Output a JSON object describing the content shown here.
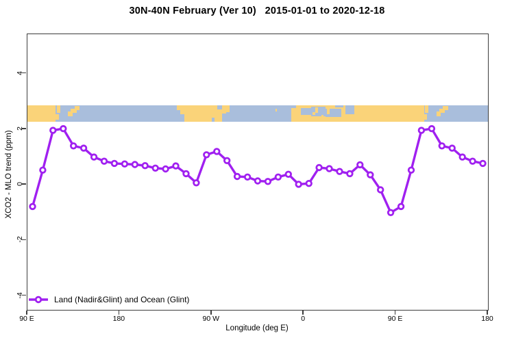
{
  "title": "30N-40N February (Ver 10)   2015-01-01 to 2020-12-18",
  "axes": {
    "x_label": "Longitude (deg E)",
    "y_label": "XCO2 - MLO trend (ppm)",
    "x_ticks": [
      {
        "deg": 90,
        "label": "90 E"
      },
      {
        "deg": 180,
        "label": "180"
      },
      {
        "deg": 270,
        "label": "90 W"
      },
      {
        "deg": 360,
        "label": "0"
      },
      {
        "deg": 450,
        "label": "90 E"
      },
      {
        "deg": 540,
        "label": "180"
      }
    ],
    "y_ticks": [
      {
        "v": 4,
        "label": "4"
      },
      {
        "v": 2,
        "label": "2"
      },
      {
        "v": 0,
        "label": "0"
      },
      {
        "v": -2,
        "label": "-2"
      },
      {
        "v": -4,
        "label": "-4"
      }
    ]
  },
  "legend": {
    "label": "Land (Nadir&Glint) and Ocean (Glint)"
  },
  "colors": {
    "series": "#A020F0",
    "marker_fill": "#ffffff",
    "land": "#FAD379",
    "ocean": "#A9BEDC",
    "axis": "#3c3c3c"
  },
  "map_band": {
    "y_top_data": 2.87,
    "y_bottom_data": 2.28,
    "land_rects": [
      [
        90,
        117.5
      ],
      [
        236,
        284
      ],
      [
        348,
        477.5
      ]
    ],
    "ocean_patches": [
      [
        236,
        243.5,
        55,
        100
      ],
      [
        236,
        239.5,
        30,
        100
      ],
      [
        280,
        284,
        50,
        100
      ],
      [
        275.5,
        280.5,
        0,
        28
      ],
      [
        270,
        273,
        78,
        100
      ],
      [
        348,
        352.5,
        0,
        20
      ],
      [
        357,
        367,
        18,
        62
      ],
      [
        367,
        381,
        12,
        68
      ],
      [
        381,
        396.5,
        22,
        72
      ],
      [
        391,
        399,
        0,
        16
      ],
      [
        400.5,
        409.5,
        0,
        58
      ]
    ],
    "land_patches": [
      [
        117.5,
        120.5,
        58,
        88
      ],
      [
        118.5,
        122,
        0,
        48
      ],
      [
        129.5,
        134,
        40,
        70
      ],
      [
        132.5,
        138,
        22,
        48
      ],
      [
        136,
        141,
        4,
        32
      ],
      [
        284,
        287.5,
        0,
        42
      ],
      [
        332.5,
        334,
        22,
        38
      ],
      [
        371.5,
        374,
        14,
        48
      ],
      [
        368.8,
        371,
        44,
        62
      ],
      [
        377,
        379,
        60,
        72
      ],
      [
        382.5,
        385.5,
        20,
        56
      ],
      [
        477.5,
        480.5,
        58,
        88
      ],
      [
        478.5,
        482,
        0,
        48
      ],
      [
        489.5,
        494,
        40,
        70
      ],
      [
        492.5,
        498,
        22,
        48
      ],
      [
        496,
        501,
        4,
        32
      ]
    ]
  },
  "chart_data": {
    "type": "line",
    "title": "30N-40N February (Ver 10)   2015-01-01 to 2020-12-18",
    "xlabel": "Longitude (deg E)",
    "ylabel": "XCO2 - MLO trend (ppm)",
    "series_name": "Land (Nadir&Glint) and Ocean (Glint)",
    "marker": "open-circle",
    "note_axis": "x axis spans 450 deg, wrapping 90E->180->90W->0->90E->180; last 9 points repeat first 9",
    "xlim": [
      90,
      540
    ],
    "ylim": [
      -4.5,
      5.42
    ],
    "x_longitude_deg": [
      95,
      105,
      115,
      125,
      135,
      145,
      155,
      165,
      175,
      185,
      195,
      205,
      215,
      225,
      235,
      245,
      255,
      265,
      275,
      285,
      295,
      305,
      315,
      325,
      335,
      345,
      355,
      365,
      375,
      385,
      395,
      405,
      415,
      425,
      435,
      445,
      455,
      465,
      475,
      485,
      495,
      505,
      515,
      525,
      535
    ],
    "values": [
      -0.78,
      0.53,
      1.96,
      2.02,
      1.4,
      1.32,
      1.0,
      0.85,
      0.77,
      0.75,
      0.73,
      0.69,
      0.6,
      0.57,
      0.68,
      0.4,
      0.07,
      1.08,
      1.2,
      0.87,
      0.3,
      0.28,
      0.14,
      0.12,
      0.28,
      0.38,
      0.02,
      0.05,
      0.62,
      0.58,
      0.48,
      0.4,
      0.72,
      0.36,
      -0.18,
      -1.0,
      -0.78,
      0.53,
      1.96,
      2.02,
      1.4,
      1.32,
      1.0,
      0.85,
      0.77
    ]
  }
}
